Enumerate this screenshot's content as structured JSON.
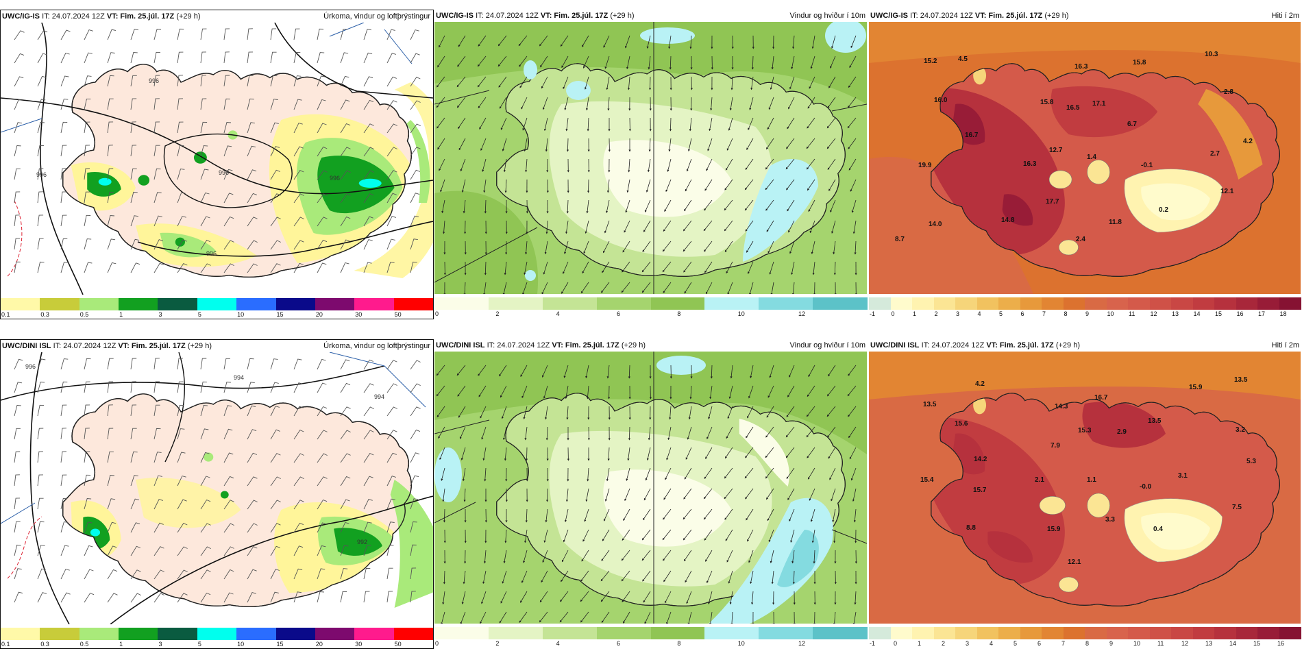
{
  "rows": [
    {
      "model": "UWC/IG-IS",
      "it": "IT: 24.07.2024 12Z",
      "vt": "VT: Fim. 25.júl. 17Z",
      "lead": "(+29 h)"
    },
    {
      "model": "UWC/DINI ISL",
      "it": "IT: 24.07.2024 12Z",
      "vt": "VT: Fim. 25.júl. 17Z",
      "lead": "(+29 h)"
    }
  ],
  "fields": {
    "precip": "Úrkoma, vindur og loftþrýstingur",
    "wind": "Vindur og hviður í 10m",
    "temp": "Hiti í 2m"
  },
  "isobars": {
    "top": [
      "996",
      "996",
      "996",
      "996",
      "996"
    ],
    "bottom": [
      "996",
      "994",
      "994",
      "992"
    ]
  },
  "scales": {
    "precip": {
      "ticks": [
        "0.1",
        "0.3",
        "0.5",
        "1",
        "3",
        "5",
        "10",
        "15",
        "20",
        "30",
        "50"
      ],
      "colors": [
        "#fff9a8",
        "#c8cc3a",
        "#a9ea7a",
        "#12a020",
        "#0a5b40",
        "#00ffee",
        "#2a6dff",
        "#0a0a8a",
        "#7d0a6e",
        "#ff1b8d",
        "#ff0000"
      ]
    },
    "wind": {
      "ticks": [
        "0",
        "2",
        "4",
        "6",
        "8",
        "10",
        "12"
      ],
      "colors": [
        "#fbfde8",
        "#e4f4c4",
        "#c4e495",
        "#a5d46e",
        "#90c554",
        "#b9f2f5",
        "#84dbe0",
        "#5cc2c8"
      ]
    },
    "temp": {
      "ticks_top": [
        "-1",
        "0",
        "1",
        "2",
        "3",
        "4",
        "5",
        "6",
        "7",
        "8",
        "9",
        "10",
        "11",
        "12",
        "13",
        "14",
        "15",
        "16",
        "17",
        "18"
      ],
      "ticks_bottom": [
        "-1",
        "0",
        "1",
        "2",
        "3",
        "4",
        "5",
        "6",
        "7",
        "8",
        "9",
        "10",
        "11",
        "12",
        "13",
        "14",
        "15",
        "16"
      ],
      "colors": [
        "#d5eadb",
        "#fffbcc",
        "#fff3b0",
        "#fbe594",
        "#f6d57a",
        "#f1c25f",
        "#ecae4a",
        "#e7993b",
        "#e28533",
        "#dc722f",
        "#d96a44",
        "#d8634c",
        "#d45a4a",
        "#cf5147",
        "#c94744",
        "#c13c40",
        "#b6313d",
        "#a8273a",
        "#981c37",
        "#861232"
      ]
    }
  },
  "temp_labels": {
    "top": [
      "15.2",
      "4.5",
      "16.3",
      "15.8",
      "10.3",
      "16.0",
      "15.8",
      "16.5",
      "17.1",
      "2.8",
      "16.7",
      "6.7",
      "4.2",
      "19.9",
      "12.7",
      "1.4",
      "2.7",
      "16.3",
      "-0.1",
      "12.1",
      "17.7",
      "0.2",
      "14.0",
      "14.8",
      "11.8",
      "2.4",
      "8.7"
    ],
    "bottom": [
      "4.2",
      "15.9",
      "13.5",
      "13.5",
      "16.7",
      "14.3",
      "15.6",
      "15.3",
      "2.9",
      "13.5",
      "3.2",
      "7.9",
      "5.3",
      "14.2",
      "2.1",
      "1.1",
      "3.1",
      "15.4",
      "15.7",
      "-0.0",
      "7.5",
      "3.3",
      "8.8",
      "15.9",
      "0.4",
      "12.1"
    ]
  }
}
